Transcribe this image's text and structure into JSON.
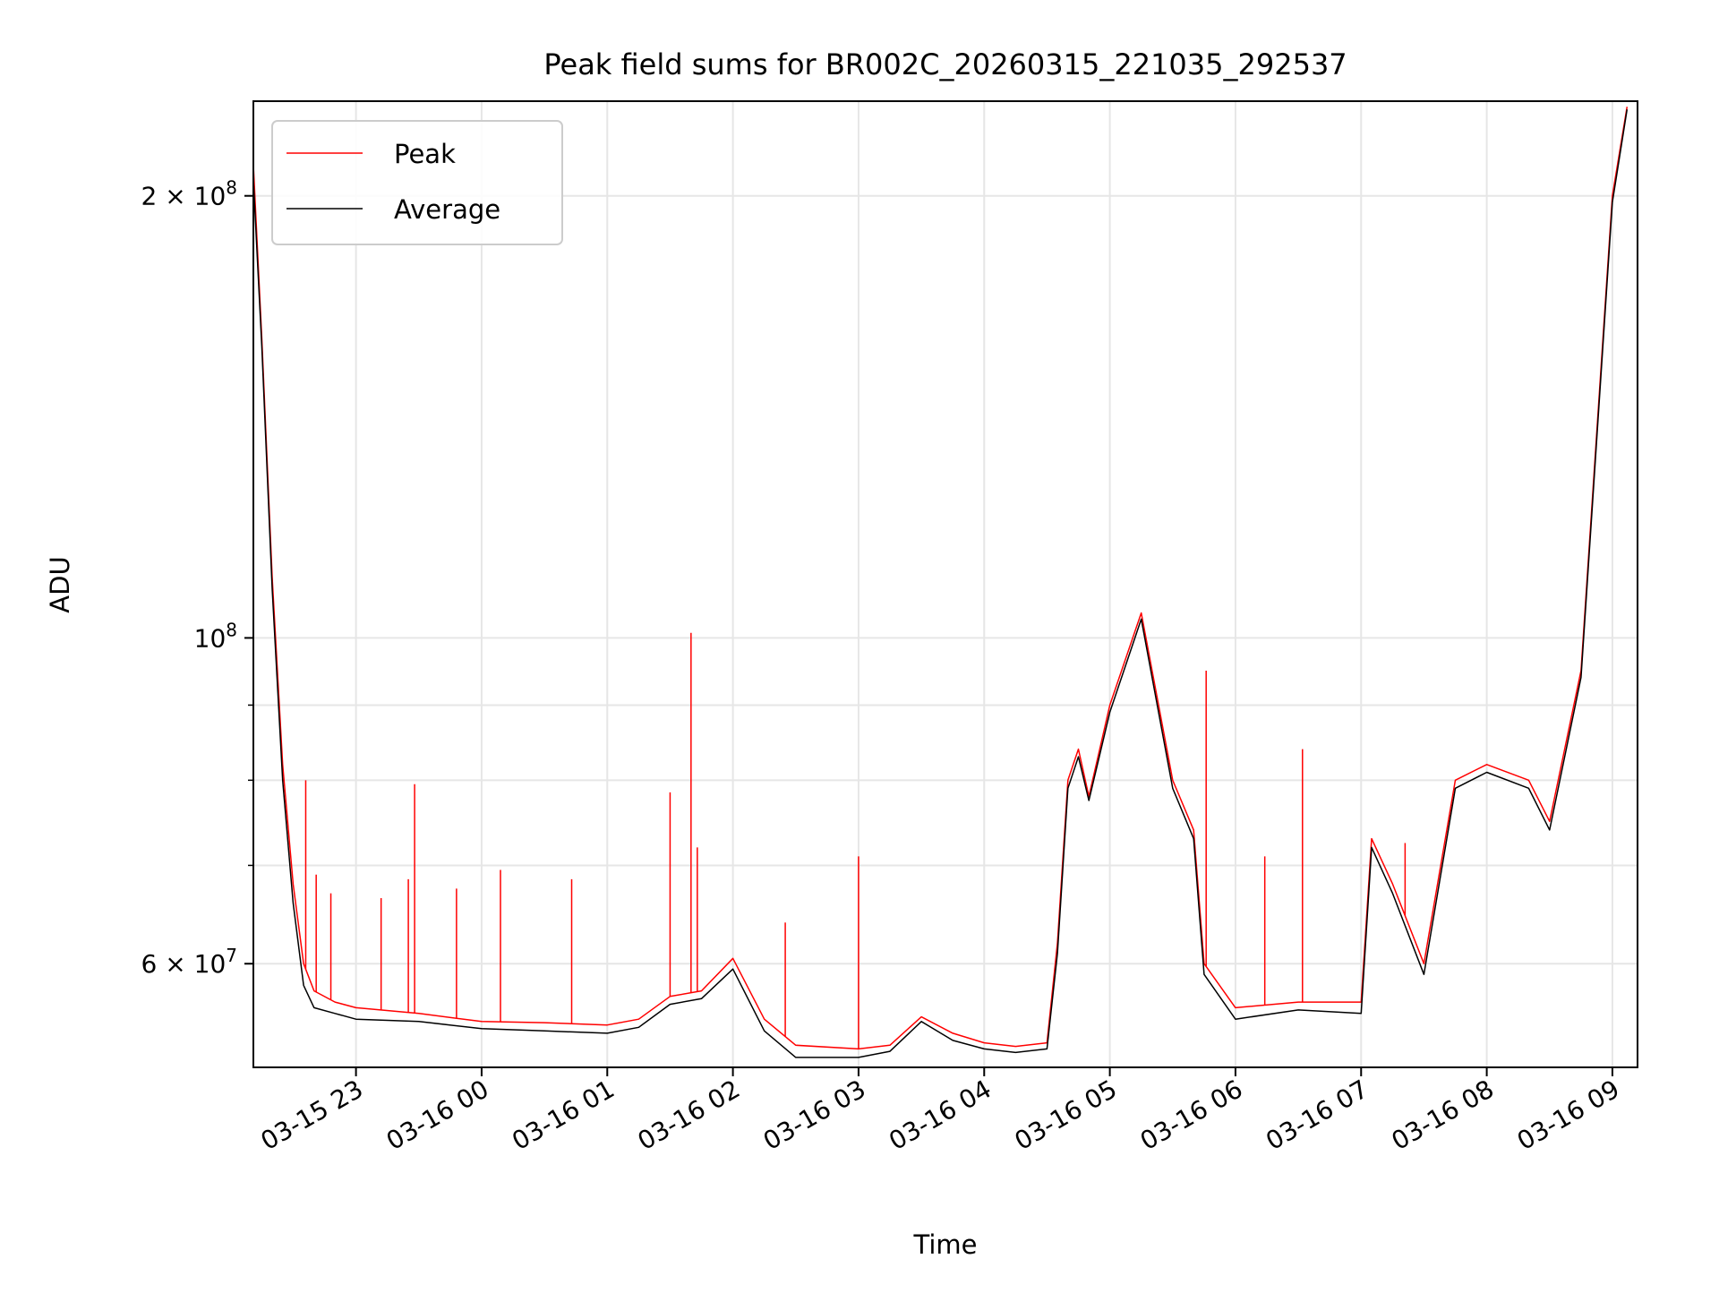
{
  "chart_data": {
    "type": "line",
    "title": "Peak field sums for BR002C_20260315_221035_292537",
    "xlabel": "Time",
    "ylabel": "ADU",
    "yscale": "log",
    "grid": true,
    "legend_position": "upper left",
    "xlim": [
      "2026-03-15 22:11",
      "2026-03-16 09:12"
    ],
    "ylim": [
      51000000,
      232000000
    ],
    "x_ticks": [
      {
        "value": "2026-03-15 23:00",
        "label": "03-15 23"
      },
      {
        "value": "2026-03-16 00:00",
        "label": "03-16 00"
      },
      {
        "value": "2026-03-16 01:00",
        "label": "03-16 01"
      },
      {
        "value": "2026-03-16 02:00",
        "label": "03-16 02"
      },
      {
        "value": "2026-03-16 03:00",
        "label": "03-16 03"
      },
      {
        "value": "2026-03-16 04:00",
        "label": "03-16 04"
      },
      {
        "value": "2026-03-16 05:00",
        "label": "03-16 05"
      },
      {
        "value": "2026-03-16 06:00",
        "label": "03-16 06"
      },
      {
        "value": "2026-03-16 07:00",
        "label": "03-16 07"
      },
      {
        "value": "2026-03-16 08:00",
        "label": "03-16 08"
      },
      {
        "value": "2026-03-16 09:00",
        "label": "03-16 09"
      }
    ],
    "y_major_ticks": [
      {
        "value": 60000000,
        "base": "6",
        "exp": "7"
      },
      {
        "value": 100000000,
        "base": "",
        "exp": "8"
      },
      {
        "value": 200000000,
        "base": "2",
        "exp": "8"
      }
    ],
    "y_minor_ticks": [
      70000000,
      80000000,
      90000000
    ],
    "series": [
      {
        "name": "Peak",
        "color": "#ff0000",
        "x": [
          "2026-03-15 22:11",
          "2026-03-15 22:15",
          "2026-03-15 22:20",
          "2026-03-15 22:25",
          "2026-03-15 22:30",
          "2026-03-15 22:35",
          "2026-03-15 22:40",
          "2026-03-15 22:50",
          "2026-03-15 23:00",
          "2026-03-15 23:30",
          "2026-03-16 00:00",
          "2026-03-16 00:30",
          "2026-03-16 01:00",
          "2026-03-16 01:15",
          "2026-03-16 01:30",
          "2026-03-16 01:45",
          "2026-03-16 02:00",
          "2026-03-16 02:15",
          "2026-03-16 02:30",
          "2026-03-16 03:00",
          "2026-03-16 03:15",
          "2026-03-16 03:30",
          "2026-03-16 03:45",
          "2026-03-16 04:00",
          "2026-03-16 04:15",
          "2026-03-16 04:30",
          "2026-03-16 04:35",
          "2026-03-16 04:40",
          "2026-03-16 04:45",
          "2026-03-16 04:50",
          "2026-03-16 05:00",
          "2026-03-16 05:15",
          "2026-03-16 05:30",
          "2026-03-16 05:40",
          "2026-03-16 05:45",
          "2026-03-16 06:00",
          "2026-03-16 06:30",
          "2026-03-16 07:00",
          "2026-03-16 07:05",
          "2026-03-16 07:15",
          "2026-03-16 07:30",
          "2026-03-16 07:45",
          "2026-03-16 08:00",
          "2026-03-16 08:20",
          "2026-03-16 08:30",
          "2026-03-16 08:45",
          "2026-03-16 09:00",
          "2026-03-16 09:07"
        ],
        "values": [
          210000000,
          160000000,
          110000000,
          82000000,
          68000000,
          60000000,
          57500000,
          56500000,
          56000000,
          55500000,
          54800000,
          54700000,
          54500000,
          55000000,
          57000000,
          57500000,
          60500000,
          55000000,
          52800000,
          52500000,
          52800000,
          55200000,
          53800000,
          53000000,
          52700000,
          53000000,
          62000000,
          80000000,
          84000000,
          78000000,
          90000000,
          104000000,
          80000000,
          74000000,
          60000000,
          56000000,
          56500000,
          56500000,
          73000000,
          68000000,
          60000000,
          80000000,
          82000000,
          80000000,
          75000000,
          95000000,
          200000000,
          230000000
        ]
      },
      {
        "name": "Average",
        "color": "#000000",
        "x": [
          "2026-03-15 22:11",
          "2026-03-15 22:15",
          "2026-03-15 22:20",
          "2026-03-15 22:25",
          "2026-03-15 22:30",
          "2026-03-15 22:35",
          "2026-03-15 22:40",
          "2026-03-15 22:50",
          "2026-03-15 23:00",
          "2026-03-15 23:30",
          "2026-03-16 00:00",
          "2026-03-16 00:30",
          "2026-03-16 01:00",
          "2026-03-16 01:15",
          "2026-03-16 01:30",
          "2026-03-16 01:45",
          "2026-03-16 02:00",
          "2026-03-16 02:15",
          "2026-03-16 02:30",
          "2026-03-16 03:00",
          "2026-03-16 03:15",
          "2026-03-16 03:30",
          "2026-03-16 03:45",
          "2026-03-16 04:00",
          "2026-03-16 04:15",
          "2026-03-16 04:30",
          "2026-03-16 04:35",
          "2026-03-16 04:40",
          "2026-03-16 04:45",
          "2026-03-16 04:50",
          "2026-03-16 05:00",
          "2026-03-16 05:15",
          "2026-03-16 05:30",
          "2026-03-16 05:40",
          "2026-03-16 05:45",
          "2026-03-16 06:00",
          "2026-03-16 06:30",
          "2026-03-16 07:00",
          "2026-03-16 07:05",
          "2026-03-16 07:15",
          "2026-03-16 07:30",
          "2026-03-16 07:45",
          "2026-03-16 08:00",
          "2026-03-16 08:20",
          "2026-03-16 08:30",
          "2026-03-16 08:45",
          "2026-03-16 09:00",
          "2026-03-16 09:07"
        ],
        "values": [
          205000000,
          158000000,
          108000000,
          80000000,
          66000000,
          58000000,
          56000000,
          55500000,
          55000000,
          54800000,
          54200000,
          54000000,
          53800000,
          54300000,
          56300000,
          56800000,
          59500000,
          54000000,
          51800000,
          51800000,
          52300000,
          54800000,
          53200000,
          52500000,
          52200000,
          52500000,
          61000000,
          79000000,
          83000000,
          77500000,
          89000000,
          103000000,
          79000000,
          73000000,
          59000000,
          55000000,
          55800000,
          55500000,
          72000000,
          67000000,
          59000000,
          79000000,
          81000000,
          79000000,
          74000000,
          94000000,
          198000000,
          229000000
        ]
      }
    ],
    "peak_spikes": [
      {
        "x": "2026-03-15 22:36",
        "value": 80000000
      },
      {
        "x": "2026-03-15 22:41",
        "value": 69000000
      },
      {
        "x": "2026-03-15 22:48",
        "value": 67000000
      },
      {
        "x": "2026-03-15 23:12",
        "value": 66500000
      },
      {
        "x": "2026-03-15 23:25",
        "value": 68500000
      },
      {
        "x": "2026-03-15 23:28",
        "value": 79500000
      },
      {
        "x": "2026-03-15 23:48",
        "value": 67500000
      },
      {
        "x": "2026-03-16 00:09",
        "value": 69500000
      },
      {
        "x": "2026-03-16 00:43",
        "value": 68500000
      },
      {
        "x": "2026-03-16 01:30",
        "value": 78500000
      },
      {
        "x": "2026-03-16 01:40",
        "value": 100800000
      },
      {
        "x": "2026-03-16 01:43",
        "value": 72000000
      },
      {
        "x": "2026-03-16 02:25",
        "value": 64000000
      },
      {
        "x": "2026-03-16 03:00",
        "value": 71000000
      },
      {
        "x": "2026-03-16 05:46",
        "value": 95000000
      },
      {
        "x": "2026-03-16 06:14",
        "value": 71000000
      },
      {
        "x": "2026-03-16 06:32",
        "value": 84000000
      },
      {
        "x": "2026-03-16 07:21",
        "value": 72500000
      }
    ]
  }
}
